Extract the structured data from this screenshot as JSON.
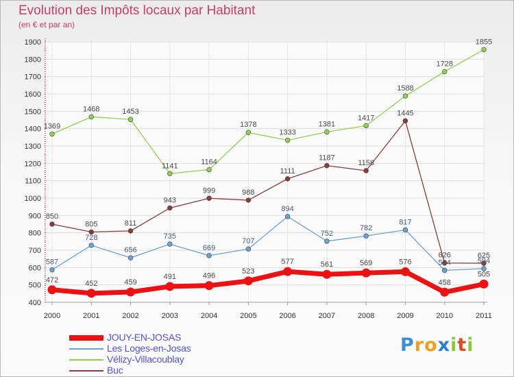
{
  "title": "Evolution des Impôts locaux par Habitant",
  "subtitle": "(en € et par an)",
  "logo": {
    "letters": [
      "P",
      "r",
      "o",
      "x",
      "i",
      "t",
      "i"
    ],
    "colors": [
      "#3a8fd8",
      "#f0a020",
      "#f0a020",
      "#2a7fd0",
      "#8cc83c",
      "#e04a20",
      "#8cc83c"
    ]
  },
  "chart_data": {
    "type": "line",
    "x": [
      "2000",
      "2001",
      "2002",
      "2003",
      "2004",
      "2005",
      "2006",
      "2007",
      "2008",
      "2009",
      "2010",
      "2011"
    ],
    "ylim": [
      400,
      1900
    ],
    "yticks": [
      400,
      500,
      600,
      700,
      800,
      900,
      1000,
      1100,
      1200,
      1300,
      1400,
      1500,
      1600,
      1700,
      1800,
      1900
    ],
    "grid": true,
    "legend_position": "bottom-left",
    "series": [
      {
        "name": "Vélizy-Villacoublay",
        "color": "#90d050",
        "label_color": "#4a4a4a",
        "width": 1.3,
        "values": [
          1369,
          1468,
          1453,
          1141,
          1164,
          1378,
          1333,
          1381,
          1417,
          1588,
          1728,
          1855
        ]
      },
      {
        "name": "Buc",
        "color": "#8c3a3a",
        "label_color": "#4a4a4a",
        "width": 1.3,
        "values": [
          850,
          805,
          811,
          943,
          999,
          988,
          1111,
          1187,
          1158,
          1445,
          626,
          625
        ]
      },
      {
        "name": "Les Loges-en-Josas",
        "color": "#6aa2d4",
        "label_color": "#4a5a7a",
        "width": 1.3,
        "values": [
          587,
          728,
          656,
          735,
          669,
          707,
          894,
          752,
          782,
          817,
          584,
          594
        ]
      },
      {
        "name": "JOUY-EN-JOSAS",
        "color": "#ee1111",
        "label_color": "#4a4a4a",
        "width": 7,
        "values": [
          472,
          452,
          459,
          491,
          496,
          523,
          577,
          561,
          569,
          576,
          458,
          505
        ]
      }
    ],
    "legend_order": [
      "JOUY-EN-JOSAS",
      "Les Loges-en-Josas",
      "Vélizy-Villacoublay",
      "Buc"
    ]
  }
}
